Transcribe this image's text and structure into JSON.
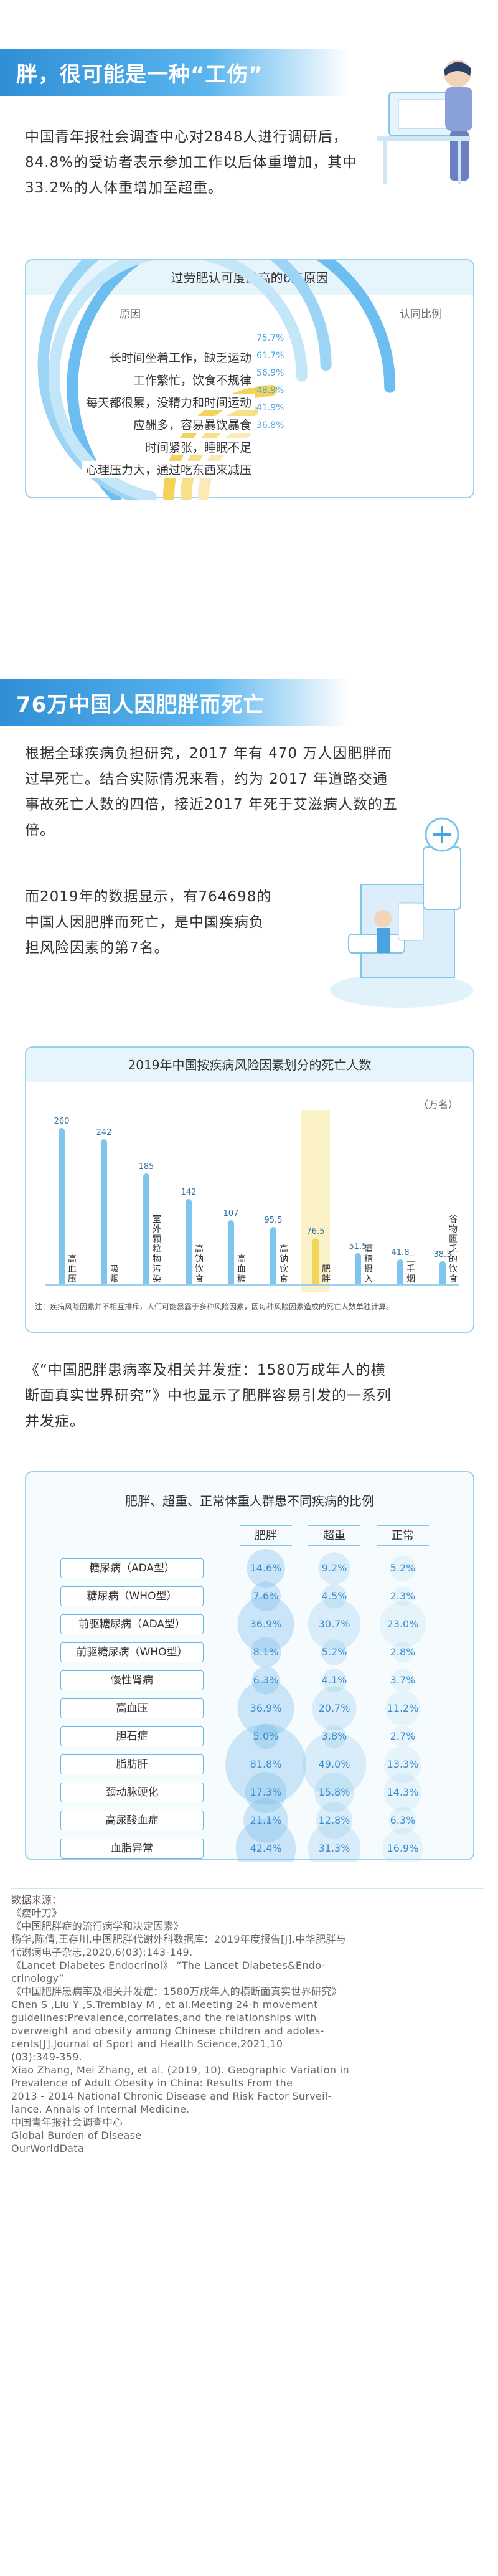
{
  "section1": {
    "title": "胖，很可能是一种“工伤”",
    "paragraph": "中国青年报社会调查中心对2848人进行调研后，84.8%的受访者表示参加工作以后体重增加，其中33.2%的人体重增加至超重。"
  },
  "reasons_chart": {
    "title": "过劳肥认可度最高的6点原因",
    "col_left": "原因",
    "col_right": "认同比例",
    "items": [
      {
        "label": "长时间坐着工作，缺乏运动",
        "pct": "75.7%",
        "value": 75.7
      },
      {
        "label": "工作繁忙，饮食不规律",
        "pct": "61.7%",
        "value": 61.7
      },
      {
        "label": "每天都很累，没精力和时间运动",
        "pct": "56.9%",
        "value": 56.9
      },
      {
        "label": "应酬多，容易暴饮暴食",
        "pct": "48.9%",
        "value": 48.9
      },
      {
        "label": "时间紧张，睡眠不足",
        "pct": "41.9%",
        "value": 41.9
      },
      {
        "label": "心理压力大，通过吃东西来减压",
        "pct": "36.8%",
        "value": 36.8
      }
    ]
  },
  "section2": {
    "title": "76万中国人因肥胖而死亡",
    "paragraph1": [
      "根据全球疾病负担研究，2017 年有 470 万人因肥胖而",
      "过早死亡。结合实际情况来看，约为 2017 年道路交通",
      "事故死亡人数的四倍，接近2017 年死于艾滋病人数的五",
      "倍。"
    ],
    "paragraph2": [
      "而2019年的数据显示，有764698的",
      "中国人因肥胖而死亡，是中国疾病负",
      "担风险因素的第7名。"
    ]
  },
  "bar_chart": {
    "title": "2019年中国按疾病风险因素划分的死亡人数",
    "unit": "（万名）",
    "note": "注：疾病风险因素并不相互排斥，人们可能暴露于多种风险因素，因每种风险因素造成的死亡人数单独计算。",
    "chart_data": {
      "type": "bar",
      "categories": [
        "高血压",
        "吸烟",
        "室外颗粒物污染",
        "高钠饮食",
        "高血糖",
        "高钠饮食",
        "肥胖",
        "酒精摄入",
        "二手烟",
        "谷物匮乏的饮食"
      ],
      "values": [
        260,
        242,
        185,
        142,
        107,
        95.5,
        76.5,
        51.5,
        41.8,
        38.3
      ],
      "value_labels": [
        "260",
        "242",
        "185",
        "142",
        "107",
        "95.5",
        "76.5",
        "51.5",
        "41.8",
        "38.3"
      ],
      "tick_labels": [
        "高血压",
        "吸烟",
        "室外颗粒物污染",
        "高钠饮食",
        "高血糖",
        "高钠饮食",
        "肥胖",
        "酒精摄入",
        "二手烟",
        "谷物匮乏的饮食"
      ],
      "highlight_index": 6,
      "ylim": [
        0,
        280
      ]
    }
  },
  "section3": {
    "paragraph": [
      "《“中国肥胖患病率及相关并发症：1580万成年人的横",
      "断面真实世界研究”》中也显示了肥胖容易引发的一系列",
      "并发症。"
    ]
  },
  "table": {
    "title": "肥胖、超重、正常体重人群患不同疾病的比例",
    "headers": [
      "肥胖",
      "超重",
      "正常"
    ],
    "rows": [
      {
        "name": "糖尿病（ADA型）",
        "values": [
          "14.6%",
          "9.2%",
          "5.2%"
        ]
      },
      {
        "name": "糖尿病（WHO型）",
        "values": [
          "7.6%",
          "4.5%",
          "2.3%"
        ]
      },
      {
        "name": "前驱糖尿病（ADA型）",
        "values": [
          "36.9%",
          "30.7%",
          "23.0%"
        ]
      },
      {
        "name": "前驱糖尿病（WHO型）",
        "values": [
          "8.1%",
          "5.2%",
          "2.8%"
        ]
      },
      {
        "name": "慢性肾病",
        "values": [
          "6.3%",
          "4.1%",
          "3.7%"
        ]
      },
      {
        "name": "高血压",
        "values": [
          "36.9%",
          "20.7%",
          "11.2%"
        ]
      },
      {
        "name": "胆石症",
        "values": [
          "5.0%",
          "3.8%",
          "2.7%"
        ]
      },
      {
        "name": "脂肪肝",
        "values": [
          "81.8%",
          "49.0%",
          "13.3%"
        ]
      },
      {
        "name": "颈动脉硬化",
        "values": [
          "17.3%",
          "15.8%",
          "14.3%"
        ]
      },
      {
        "name": "高尿酸血症",
        "values": [
          "21.1%",
          "12.8%",
          "6.3%"
        ]
      },
      {
        "name": "血脂异常",
        "values": [
          "42.4%",
          "31.3%",
          "16.9%"
        ]
      }
    ]
  },
  "sources": {
    "heading": "数据来源：",
    "lines": [
      "《瘦叶刀》",
      "《中国肥胖症的流行病学和决定因素》",
      "杨华,陈倩,王存川.中国肥胖代谢外科数据库：2019年度报告[J].中华肥胖与",
      "代谢病电子杂志,2020,6(03):143-149.",
      "《Lancet Diabetes Endocrinol》 “The Lancet Diabetes&Endo-",
      "crinology”",
      "《中国肥胖患病率及相关并发症：1580万成年人的横断面真实世界研究》",
      "Chen S ,Liu Y ,S.Tremblay M , et al.Meeting 24-h movement",
      "guidelines:Prevalence,correlates,and the relationships with",
      "overweight and obesity among Chinese children and adoles-",
      "cents[J].Journal of Sport and Health Science,2021,10",
      "(03):349-359.",
      "Xiao Zhang, Mei Zhang, et al. (2019, 10). Geographic Variation in",
      "Prevalence of Adult Obesity in China: Results From the",
      "2013 - 2014 National Chronic Disease and Risk Factor Surveil-",
      "lance. Annals of Internal Medicine.",
      "中国青年报社会调查中心",
      "Global Burden of Disease",
      "OurWorldData"
    ]
  }
}
